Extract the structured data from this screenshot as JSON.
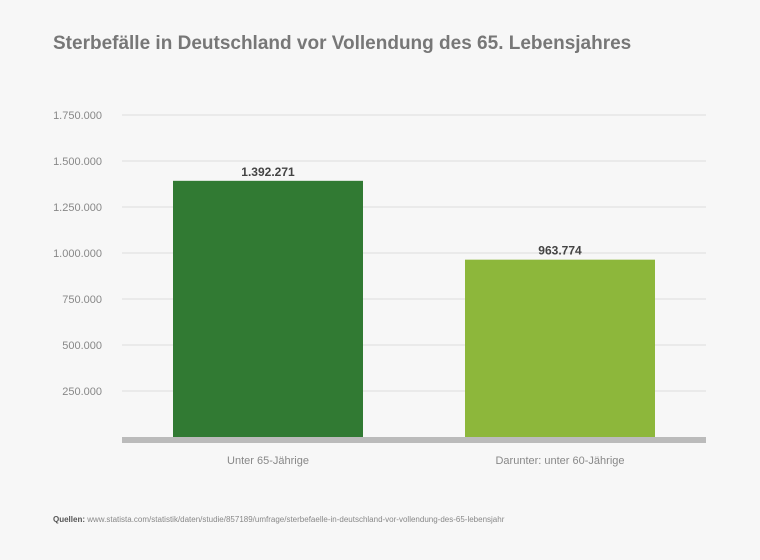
{
  "chart_data": {
    "type": "bar",
    "title": "Sterbefälle in Deutschland vor Vollendung des 65. Lebensjahres",
    "categories": [
      "Unter 65-Jährige",
      "Darunter: unter 60-Jährige"
    ],
    "values": [
      1392271,
      963774
    ],
    "value_labels": [
      "1.392.271",
      "963.774"
    ],
    "bar_colors": [
      "#317a33",
      "#8db73b"
    ],
    "ylim": [
      0,
      1750000
    ],
    "yticks": [
      250000,
      500000,
      750000,
      1000000,
      1250000,
      1500000,
      1750000
    ],
    "ytick_labels": [
      "250.000",
      "500.000",
      "750.000",
      "1.000.000",
      "1.250.000",
      "1.500.000",
      "1.750.000"
    ],
    "grid": true,
    "xlabel": "",
    "ylabel": ""
  },
  "source": {
    "prefix": "Quellen:",
    "url": "www.statista.com/statistik/daten/studie/857189/umfrage/sterbefaelle-in-deutschland-vor-vollendung-des-65-lebensjahr"
  },
  "colors": {
    "grid": "#dddddd",
    "baseline": "#bbbbbb",
    "background": "#f7f7f7"
  }
}
